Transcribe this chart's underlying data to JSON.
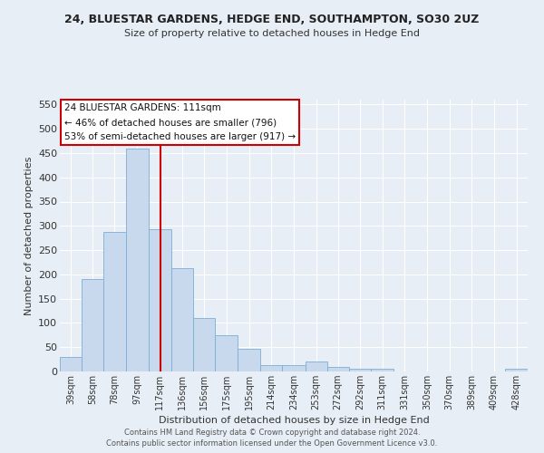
{
  "title": "24, BLUESTAR GARDENS, HEDGE END, SOUTHAMPTON, SO30 2UZ",
  "subtitle": "Size of property relative to detached houses in Hedge End",
  "xlabel": "Distribution of detached houses by size in Hedge End",
  "ylabel": "Number of detached properties",
  "bar_color": "#c8d9ee",
  "bar_edge_color": "#7bafd4",
  "background_color": "#e8eef5",
  "grid_color": "#ffffff",
  "red_line_x": 117,
  "annotation_title": "24 BLUESTAR GARDENS: 111sqm",
  "annotation_line1": "← 46% of detached houses are smaller (796)",
  "annotation_line2": "53% of semi-detached houses are larger (917) →",
  "annotation_box_color": "#ffffff",
  "annotation_box_edge": "#cc0000",
  "footer1": "Contains HM Land Registry data © Crown copyright and database right 2024.",
  "footer2": "Contains public sector information licensed under the Open Government Licence v3.0.",
  "categories": [
    "39sqm",
    "58sqm",
    "78sqm",
    "97sqm",
    "117sqm",
    "136sqm",
    "156sqm",
    "175sqm",
    "195sqm",
    "214sqm",
    "234sqm",
    "253sqm",
    "272sqm",
    "292sqm",
    "311sqm",
    "331sqm",
    "350sqm",
    "370sqm",
    "389sqm",
    "409sqm",
    "428sqm"
  ],
  "bin_edges": [
    29.5,
    48.5,
    67.5,
    87,
    107,
    126.5,
    145.5,
    165,
    184.5,
    204.5,
    223.5,
    243.5,
    262.5,
    281.5,
    301,
    320.5,
    340,
    359.5,
    379,
    398.5,
    418,
    437.5
  ],
  "values": [
    30,
    190,
    288,
    460,
    293,
    213,
    110,
    75,
    46,
    13,
    13,
    20,
    9,
    5,
    5,
    0,
    0,
    0,
    0,
    0,
    5
  ],
  "ylim": [
    0,
    560
  ],
  "yticks": [
    0,
    50,
    100,
    150,
    200,
    250,
    300,
    350,
    400,
    450,
    500,
    550
  ]
}
